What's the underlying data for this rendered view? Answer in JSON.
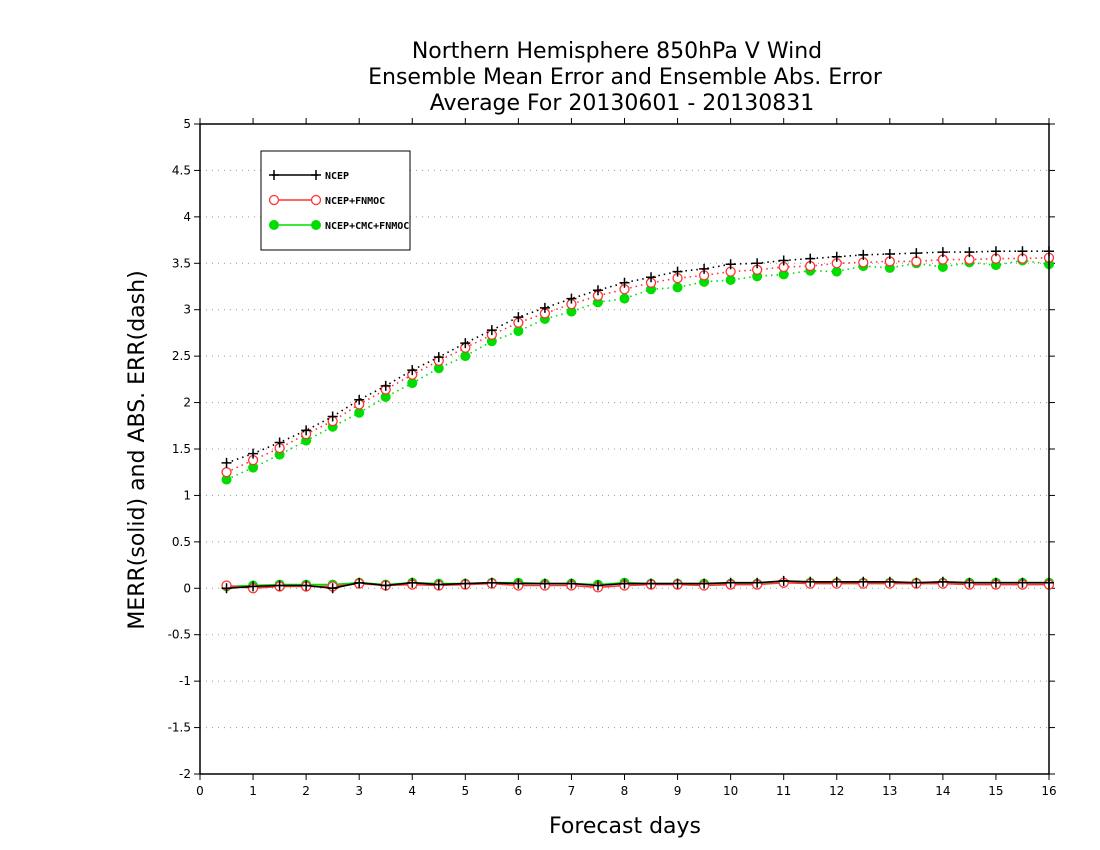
{
  "chart_data": {
    "type": "line",
    "title_lines": [
      "Northern Hemisphere 850hPa V Wind",
      "Ensemble Mean Error and Ensemble Abs. Error",
      "Average For 20130601 - 20130831"
    ],
    "xlabel": "Forecast days",
    "ylabel": "MERR(solid) and ABS. ERR(dash)",
    "xlim": [
      0,
      16
    ],
    "ylim": [
      -2,
      5
    ],
    "x_ticks": [
      0,
      1,
      2,
      3,
      4,
      5,
      6,
      7,
      8,
      9,
      10,
      11,
      12,
      13,
      14,
      15,
      16
    ],
    "y_ticks": [
      -2,
      -1.5,
      -1,
      -0.5,
      0,
      0.5,
      1,
      1.5,
      2,
      2.5,
      3,
      3.5,
      4,
      4.5,
      5
    ],
    "y_tick_labels": [
      "-2",
      "-1.5",
      "-1",
      "-0.5",
      "0",
      "0.5",
      "1",
      "1.5",
      "2",
      "2.5",
      "3",
      "3.5",
      "4",
      "4.5",
      "5"
    ],
    "grid": true,
    "legend_position": "top-left",
    "x": [
      0.5,
      1,
      1.5,
      2,
      2.5,
      3,
      3.5,
      4,
      4.5,
      5,
      5.5,
      6,
      6.5,
      7,
      7.5,
      8,
      8.5,
      9,
      9.5,
      10,
      10.5,
      11,
      11.5,
      12,
      12.5,
      13,
      13.5,
      14,
      14.5,
      15,
      15.5,
      16
    ],
    "series": [
      {
        "name": "NCEP",
        "color": "#000000",
        "marker": "plus",
        "abs_err": [
          1.35,
          1.45,
          1.57,
          1.7,
          1.85,
          2.03,
          2.18,
          2.35,
          2.49,
          2.64,
          2.78,
          2.92,
          3.02,
          3.12,
          3.21,
          3.29,
          3.35,
          3.41,
          3.44,
          3.49,
          3.5,
          3.53,
          3.55,
          3.57,
          3.59,
          3.6,
          3.61,
          3.62,
          3.62,
          3.63,
          3.63,
          3.63
        ],
        "merr": [
          0.0,
          0.02,
          0.03,
          0.03,
          0.0,
          0.06,
          0.03,
          0.06,
          0.04,
          0.05,
          0.06,
          0.05,
          0.05,
          0.05,
          0.03,
          0.05,
          0.05,
          0.05,
          0.05,
          0.06,
          0.06,
          0.08,
          0.07,
          0.07,
          0.07,
          0.07,
          0.06,
          0.07,
          0.06,
          0.06,
          0.06,
          0.06
        ]
      },
      {
        "name": "NCEP+FNMOC",
        "color": "#ff3333",
        "marker": "open-circle",
        "abs_err": [
          1.25,
          1.38,
          1.51,
          1.66,
          1.8,
          1.98,
          2.14,
          2.3,
          2.45,
          2.59,
          2.73,
          2.86,
          2.96,
          3.06,
          3.15,
          3.22,
          3.29,
          3.34,
          3.37,
          3.41,
          3.43,
          3.46,
          3.47,
          3.5,
          3.51,
          3.52,
          3.52,
          3.54,
          3.54,
          3.55,
          3.55,
          3.56
        ],
        "merr": [
          0.03,
          0.0,
          0.02,
          0.02,
          0.02,
          0.05,
          0.03,
          0.04,
          0.03,
          0.04,
          0.05,
          0.03,
          0.03,
          0.03,
          0.01,
          0.03,
          0.04,
          0.04,
          0.03,
          0.04,
          0.04,
          0.06,
          0.05,
          0.05,
          0.05,
          0.05,
          0.05,
          0.05,
          0.04,
          0.04,
          0.04,
          0.04
        ]
      },
      {
        "name": "NCEP+CMC+FNMOC",
        "color": "#00dd00",
        "marker": "filled-circle",
        "abs_err": [
          1.17,
          1.3,
          1.44,
          1.59,
          1.74,
          1.89,
          2.06,
          2.21,
          2.37,
          2.5,
          2.66,
          2.77,
          2.9,
          2.98,
          3.08,
          3.12,
          3.22,
          3.24,
          3.3,
          3.32,
          3.36,
          3.38,
          3.42,
          3.41,
          3.47,
          3.45,
          3.5,
          3.46,
          3.51,
          3.48,
          3.53,
          3.49
        ],
        "merr": [
          0.02,
          0.03,
          0.04,
          0.04,
          0.04,
          0.06,
          0.04,
          0.06,
          0.05,
          0.05,
          0.06,
          0.06,
          0.05,
          0.05,
          0.04,
          0.06,
          0.05,
          0.05,
          0.05,
          0.05,
          0.05,
          0.06,
          0.06,
          0.06,
          0.06,
          0.06,
          0.06,
          0.06,
          0.06,
          0.06,
          0.06,
          0.06
        ]
      }
    ]
  }
}
